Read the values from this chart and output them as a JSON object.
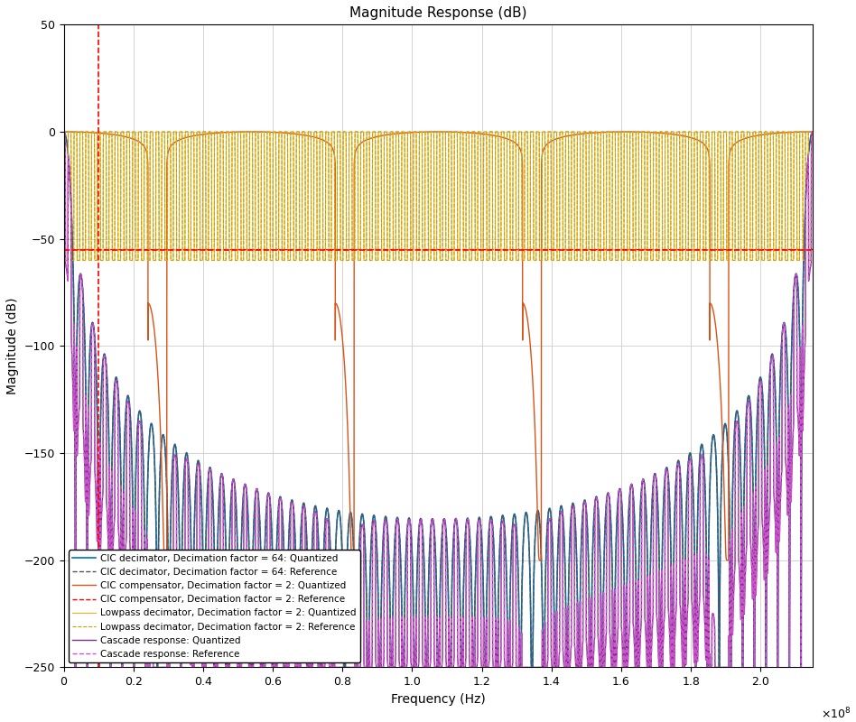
{
  "title": "Magnitude Response (dB)",
  "xlabel": "Frequency (Hz)",
  "ylabel": "Magnitude (dB)",
  "xlim": [
    0,
    215000000.0
  ],
  "ylim": [
    -250,
    50
  ],
  "fs": 215000000.0,
  "hline_y": -55,
  "vline_x": 10000000.0,
  "colors": {
    "CIC_q": "#0072BD",
    "CIC_r": "#555555",
    "comp_q": "#D95319",
    "comp_r": "#FF0000",
    "lp_q": "#EDB120",
    "lp_r": "#C8A000",
    "cascade_q": "#7E2F8E",
    "cascade_r": "#CC55CC"
  },
  "legend_labels": [
    "CIC decimator, Decimation factor = 64: Quantized",
    "CIC decimator, Decimation factor = 64: Reference",
    "CIC compensator, Decimation factor = 2: Quantized",
    "CIC compensator, Decimation factor = 2: Reference",
    "Lowpass decimator, Decimation factor = 2: Quantized",
    "Lowpass decimator, Decimation factor = 2: Reference",
    "Cascade response: Quantized",
    "Cascade response: Reference"
  ],
  "yticks": [
    50,
    0,
    -50,
    -100,
    -150,
    -200,
    -250
  ],
  "xticks": [
    0,
    0.2,
    0.4,
    0.6,
    0.8,
    1.0,
    1.2,
    1.4,
    1.6,
    1.8,
    2.0
  ]
}
